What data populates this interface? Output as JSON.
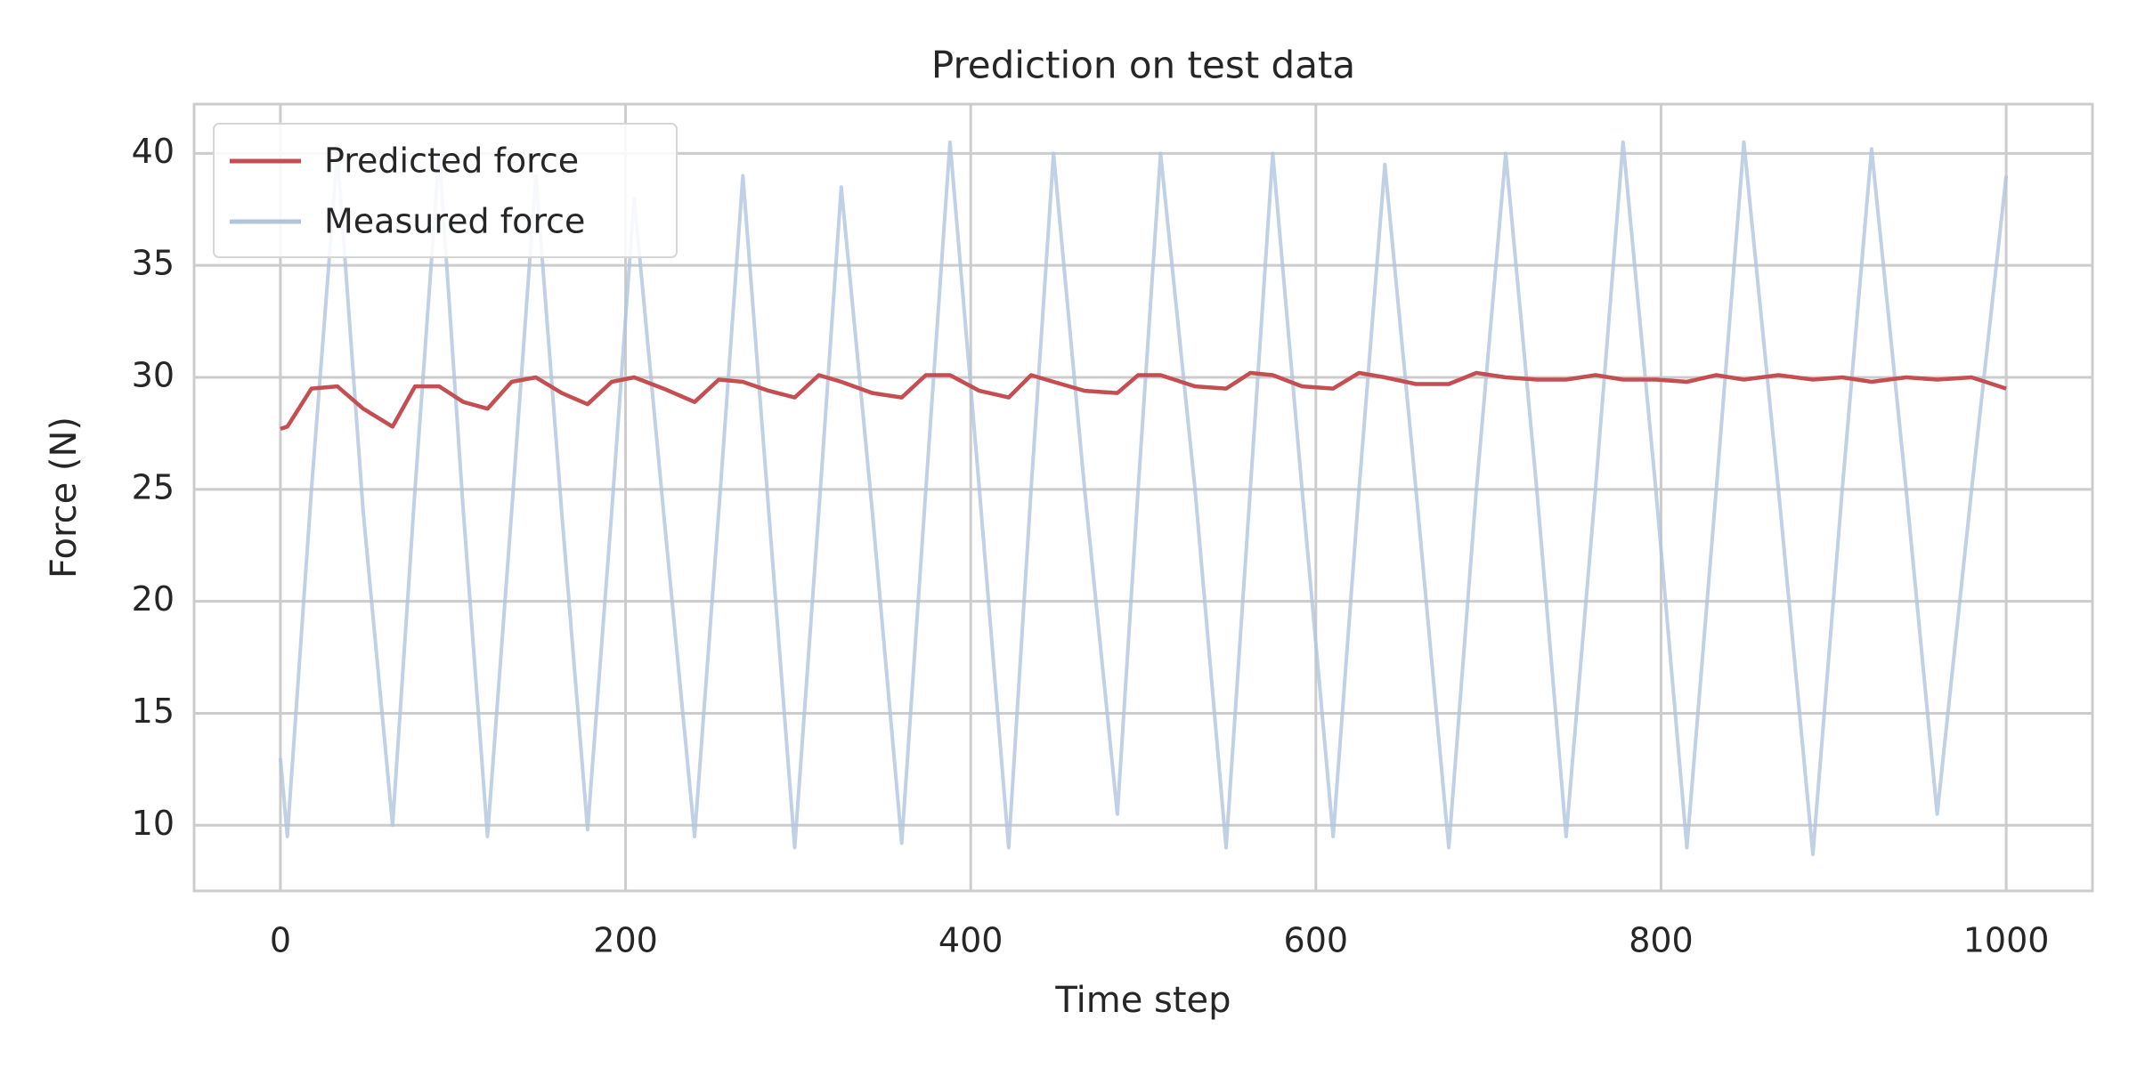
{
  "chart_data": {
    "type": "line",
    "title": "Prediction on test data",
    "x_label": "Time step",
    "y_label": "Force (N)",
    "x": [
      0,
      4,
      18,
      33,
      48,
      65,
      78,
      92,
      106,
      120,
      134,
      148,
      163,
      178,
      192,
      205,
      222,
      240,
      254,
      268,
      283,
      298,
      312,
      325,
      343,
      360,
      374,
      388,
      405,
      422,
      435,
      448,
      466,
      485,
      497,
      510,
      530,
      548,
      562,
      575,
      592,
      610,
      625,
      640,
      658,
      677,
      693,
      710,
      728,
      745,
      762,
      778,
      797,
      815,
      832,
      848,
      868,
      888,
      905,
      922,
      942,
      960,
      980,
      1000
    ],
    "series": [
      {
        "name": "Predicted force",
        "color": "#c44e52",
        "values": [
          27.7,
          27.8,
          29.5,
          29.6,
          28.6,
          27.8,
          29.6,
          29.6,
          28.9,
          28.6,
          29.8,
          30.0,
          29.3,
          28.8,
          29.8,
          30.0,
          29.5,
          28.9,
          29.9,
          29.8,
          29.4,
          29.1,
          30.1,
          29.8,
          29.3,
          29.1,
          30.1,
          30.1,
          29.4,
          29.1,
          30.1,
          29.8,
          29.4,
          29.3,
          30.1,
          30.1,
          29.6,
          29.5,
          30.2,
          30.1,
          29.6,
          29.5,
          30.2,
          30.0,
          29.7,
          29.7,
          30.2,
          30.0,
          29.9,
          29.9,
          30.1,
          29.9,
          29.9,
          29.8,
          30.1,
          29.9,
          30.1,
          29.9,
          30.0,
          29.8,
          30.0,
          29.9,
          30.0,
          29.5
        ]
      },
      {
        "name": "Measured force",
        "color": "#b0c4de",
        "values": [
          13,
          9.5,
          25,
          40,
          24,
          10,
          25,
          40,
          24,
          9.5,
          24,
          39,
          24,
          9.8,
          24,
          38,
          24,
          9.5,
          24,
          39,
          24,
          9,
          24,
          38.5,
          24,
          9.2,
          25,
          40.5,
          25,
          9,
          25,
          40,
          25,
          10.5,
          25,
          40,
          25,
          9,
          25,
          40,
          25,
          9.5,
          25,
          39.5,
          25,
          9,
          25,
          40,
          25,
          9.5,
          25,
          40.5,
          25,
          9,
          25,
          40.5,
          25,
          8.7,
          25,
          40.2,
          25,
          10.5,
          25,
          39
        ]
      }
    ],
    "xlim": [
      -50,
      1050
    ],
    "ylim": [
      7.07,
      42.2
    ],
    "xticks": [
      0,
      200,
      400,
      600,
      800,
      1000
    ],
    "yticks": [
      10,
      15,
      20,
      25,
      30,
      35,
      40
    ],
    "grid": true,
    "legend": "upper left"
  }
}
